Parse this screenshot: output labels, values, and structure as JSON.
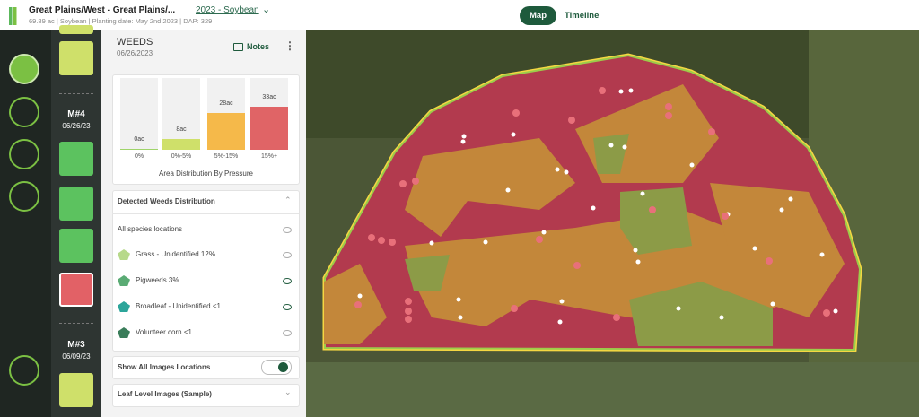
{
  "header": {
    "title": "Great Plains/West - Great Plains/...",
    "subtitle": "69.89 ac | Soybean | Planting date: May 2nd 2023 | DAP: 329",
    "season": "2023 - Soybean",
    "tabs": [
      "Map",
      "Timeline"
    ]
  },
  "missions": [
    {
      "label": "M#4",
      "date": "06/26/23"
    },
    {
      "label": "M#3",
      "date": "06/09/23"
    }
  ],
  "panel": {
    "title": "WEEDS",
    "date": "06/26/2023",
    "notes": "Notes",
    "distribution": {
      "title": "Detected Weeds Distribution",
      "items": [
        "All species locations",
        "Grass - Unidentified 12%",
        "Pigweeds 3%",
        "Broadleaf - Unidentified <1",
        "Volunteer corn <1"
      ]
    },
    "toggle": "Show All Images Locations",
    "leaf": "Leaf Level Images (Sample)"
  },
  "chart_data": {
    "type": "bar",
    "title": "Area Distribution By Pressure",
    "categories": [
      "0%",
      "0%-5%",
      "5%-15%",
      "15%+"
    ],
    "values": [
      0,
      8,
      28,
      33
    ],
    "value_labels": [
      "0ac",
      "8ac",
      "28ac",
      "33ac"
    ],
    "colors": [
      "#9fd46a",
      "#cfe06a",
      "#f5b94a",
      "#e06466"
    ]
  }
}
